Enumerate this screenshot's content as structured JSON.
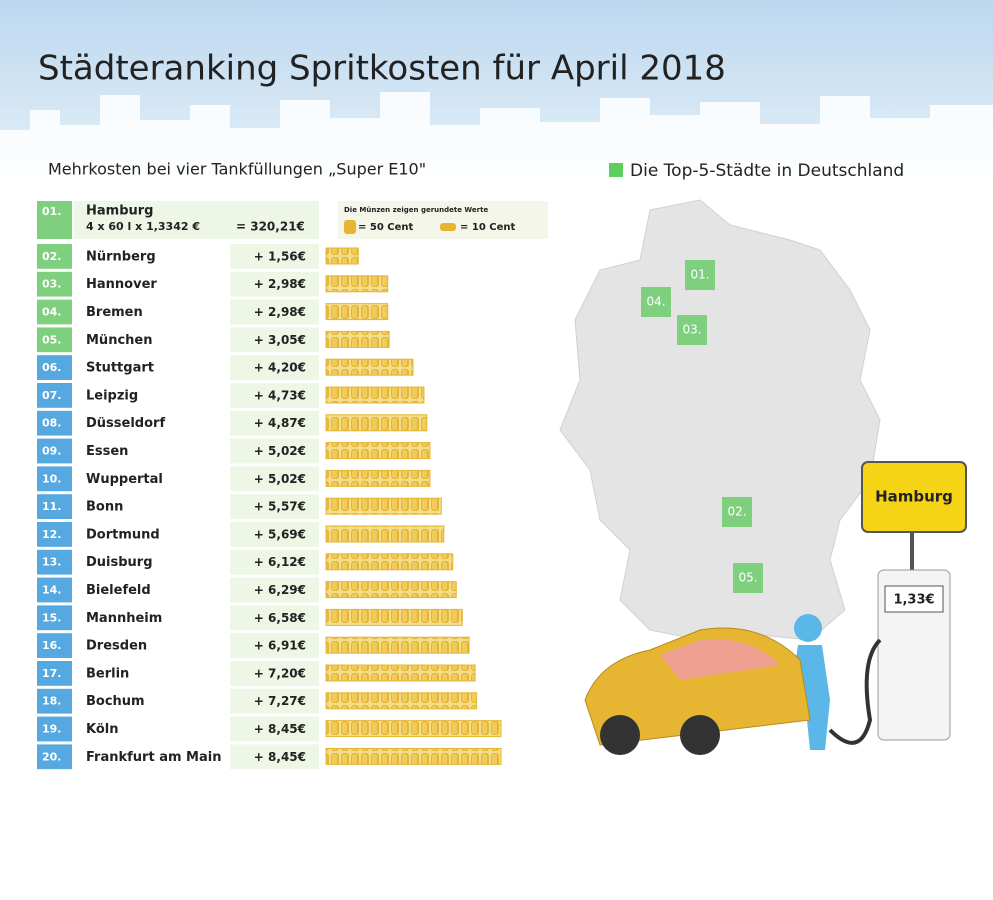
{
  "chart_data": {
    "type": "bar",
    "title": "Städteranking Spritkosten für April 2018",
    "subtitle": "Mehrkosten bei vier Tankfüllungen „Super E10\"",
    "base": {
      "rank": "01.",
      "city": "Hamburg",
      "formula": "4 x 60 l x 1,3342 €",
      "total": "= 320,21€"
    },
    "coin_note": "Die Münzen zeigen gerundete Werte",
    "coin_legend": [
      "= 50 Cent",
      "= 10 Cent"
    ],
    "ranks": [
      "02.",
      "03.",
      "04.",
      "05.",
      "06.",
      "07.",
      "08.",
      "09.",
      "10.",
      "11.",
      "12.",
      "13.",
      "14.",
      "15.",
      "16.",
      "17.",
      "18.",
      "19.",
      "20."
    ],
    "categories": [
      "Nürnberg",
      "Hannover",
      "Bremen",
      "München",
      "Stuttgart",
      "Leipzig",
      "Düsseldorf",
      "Essen",
      "Wuppertal",
      "Bonn",
      "Dortmund",
      "Duisburg",
      "Bielefeld",
      "Mannheim",
      "Dresden",
      "Berlin",
      "Bochum",
      "Köln",
      "Frankfurt am Main"
    ],
    "values": [
      1.56,
      2.98,
      2.98,
      3.05,
      4.2,
      4.73,
      4.87,
      5.02,
      5.02,
      5.57,
      5.69,
      6.12,
      6.29,
      6.58,
      6.91,
      7.2,
      7.27,
      8.45,
      8.45
    ],
    "value_labels": [
      "+ 1,56€",
      "+ 2,98€",
      "+ 2,98€",
      "+ 3,05€",
      "+ 4,20€",
      "+ 4,73€",
      "+ 4,87€",
      "+ 5,02€",
      "+ 5,02€",
      "+ 5,57€",
      "+ 5,69€",
      "+ 6,12€",
      "+ 6,29€",
      "+ 6,58€",
      "+ 6,91€",
      "+ 7,20€",
      "+ 7,27€",
      "+ 8,45€",
      "+ 8,45€"
    ],
    "color": "#e6b532",
    "map_legend": "Die Top-5-Städte in Deutschland",
    "map_labels": [
      "01.",
      "04.",
      "03.",
      "02.",
      "05."
    ],
    "sign": "Hamburg",
    "price": "1,33€"
  }
}
